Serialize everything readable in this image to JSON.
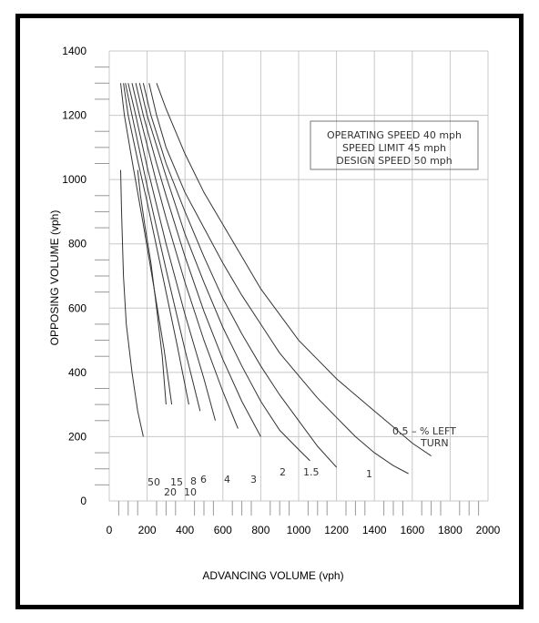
{
  "chart_data": {
    "type": "line",
    "xlabel": "ADVANCING VOLUME (vph)",
    "ylabel": "OPPOSING VOLUME (vph)",
    "xlim": [
      0,
      2000
    ],
    "ylim": [
      0,
      1400
    ],
    "xticks": [
      0,
      200,
      400,
      600,
      800,
      1000,
      1200,
      1400,
      1600,
      1800,
      2000
    ],
    "yticks": [
      0,
      200,
      400,
      600,
      800,
      1000,
      1200,
      1400
    ],
    "grid": true,
    "annotation": [
      "OPERATING SPEED 40 mph",
      "SPEED LIMIT 45 mph",
      "DESIGN SPEED 50 mph"
    ],
    "legend_title": [
      "0.5 – % LEFT",
      "TURN"
    ],
    "series": [
      {
        "name": "0.5",
        "points": [
          [
            250,
            1300
          ],
          [
            300,
            1220
          ],
          [
            400,
            1080
          ],
          [
            500,
            960
          ],
          [
            600,
            860
          ],
          [
            700,
            760
          ],
          [
            800,
            660
          ],
          [
            900,
            580
          ],
          [
            1000,
            500
          ],
          [
            1100,
            440
          ],
          [
            1200,
            380
          ],
          [
            1300,
            330
          ],
          [
            1400,
            280
          ],
          [
            1500,
            230
          ],
          [
            1600,
            180
          ],
          [
            1700,
            140
          ]
        ]
      },
      {
        "name": "1",
        "points": [
          [
            210,
            1300
          ],
          [
            250,
            1200
          ],
          [
            300,
            1100
          ],
          [
            400,
            960
          ],
          [
            500,
            850
          ],
          [
            600,
            740
          ],
          [
            700,
            640
          ],
          [
            800,
            550
          ],
          [
            900,
            460
          ],
          [
            1000,
            390
          ],
          [
            1100,
            320
          ],
          [
            1200,
            260
          ],
          [
            1300,
            200
          ],
          [
            1400,
            150
          ],
          [
            1500,
            110
          ],
          [
            1580,
            85
          ]
        ]
      },
      {
        "name": "1.5",
        "points": [
          [
            180,
            1300
          ],
          [
            220,
            1200
          ],
          [
            300,
            1050
          ],
          [
            400,
            900
          ],
          [
            500,
            760
          ],
          [
            600,
            630
          ],
          [
            700,
            520
          ],
          [
            800,
            420
          ],
          [
            900,
            330
          ],
          [
            1000,
            250
          ],
          [
            1100,
            170
          ],
          [
            1200,
            105
          ]
        ]
      },
      {
        "name": "2",
        "points": [
          [
            160,
            1300
          ],
          [
            200,
            1200
          ],
          [
            300,
            1010
          ],
          [
            400,
            830
          ],
          [
            500,
            680
          ],
          [
            600,
            540
          ],
          [
            700,
            420
          ],
          [
            800,
            310
          ],
          [
            900,
            220
          ],
          [
            1000,
            160
          ],
          [
            1060,
            125
          ]
        ]
      },
      {
        "name": "3",
        "points": [
          [
            140,
            1300
          ],
          [
            180,
            1200
          ],
          [
            250,
            1050
          ],
          [
            300,
            950
          ],
          [
            400,
            760
          ],
          [
            500,
            590
          ],
          [
            600,
            440
          ],
          [
            700,
            310
          ],
          [
            800,
            200
          ]
        ]
      },
      {
        "name": "4",
        "points": [
          [
            120,
            1300
          ],
          [
            160,
            1200
          ],
          [
            250,
            990
          ],
          [
            300,
            880
          ],
          [
            400,
            680
          ],
          [
            500,
            500
          ],
          [
            600,
            340
          ],
          [
            680,
            225
          ]
        ]
      },
      {
        "name": "6",
        "points": [
          [
            100,
            1300
          ],
          [
            140,
            1200
          ],
          [
            200,
            1040
          ],
          [
            300,
            800
          ],
          [
            400,
            580
          ],
          [
            500,
            380
          ],
          [
            560,
            250
          ]
        ]
      },
      {
        "name": "8",
        "points": [
          [
            85,
            1300
          ],
          [
            120,
            1200
          ],
          [
            200,
            980
          ],
          [
            300,
            720
          ],
          [
            400,
            470
          ],
          [
            480,
            280
          ]
        ]
      },
      {
        "name": "10",
        "points": [
          [
            75,
            1300
          ],
          [
            100,
            1200
          ],
          [
            150,
            1060
          ],
          [
            200,
            930
          ],
          [
            300,
            650
          ],
          [
            360,
            480
          ],
          [
            420,
            300
          ]
        ]
      },
      {
        "name": "15",
        "points": [
          [
            60,
            1300
          ],
          [
            80,
            1200
          ],
          [
            120,
            1060
          ],
          [
            180,
            860
          ],
          [
            240,
            650
          ],
          [
            290,
            470
          ],
          [
            330,
            300
          ]
        ]
      },
      {
        "name": "20",
        "points": [
          [
            150,
            1030
          ],
          [
            165,
            950
          ],
          [
            190,
            850
          ],
          [
            220,
            740
          ],
          [
            250,
            600
          ],
          [
            280,
            450
          ],
          [
            300,
            300
          ]
        ]
      },
      {
        "name": "50",
        "points": [
          [
            60,
            1030
          ],
          [
            65,
            900
          ],
          [
            75,
            700
          ],
          [
            90,
            550
          ],
          [
            120,
            400
          ],
          [
            150,
            280
          ],
          [
            180,
            200
          ]
        ]
      }
    ]
  }
}
